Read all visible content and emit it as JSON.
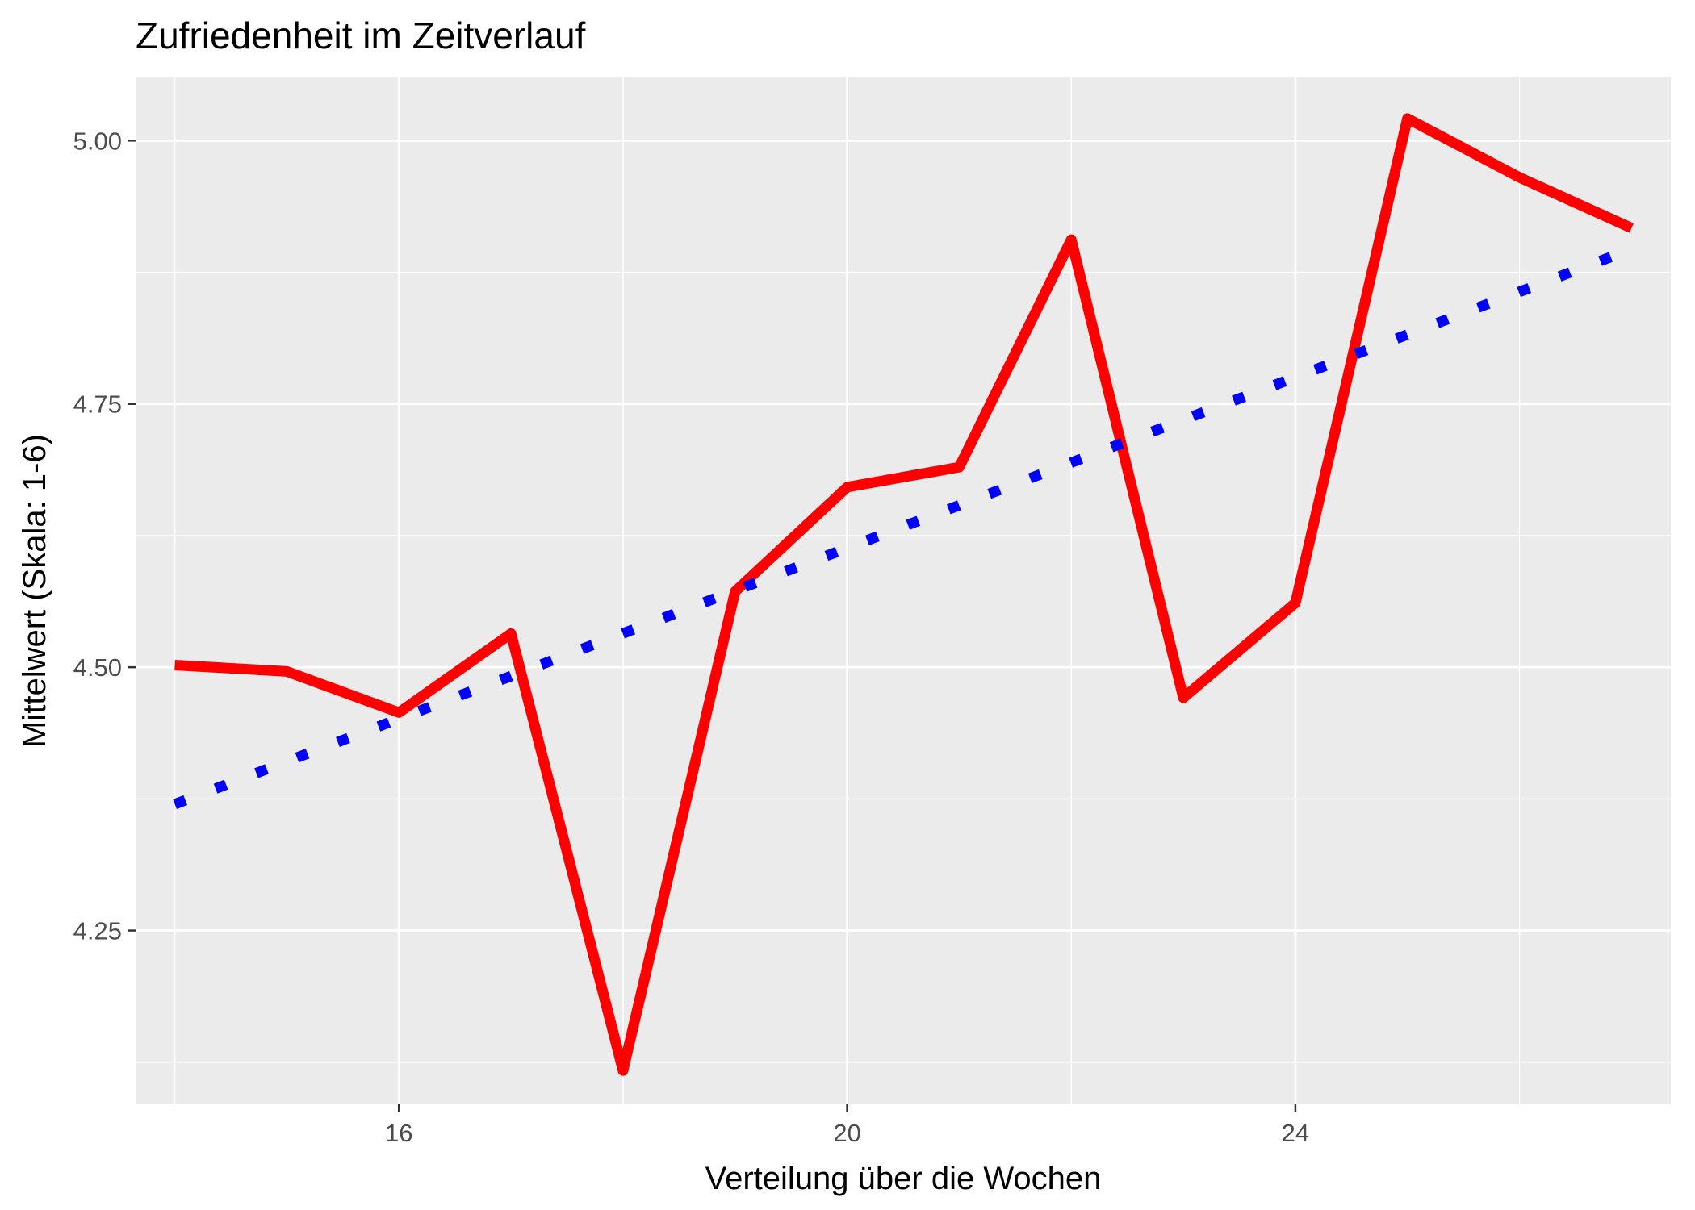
{
  "chart_data": {
    "type": "line",
    "title": "Zufriedenheit im Zeitverlauf",
    "xlabel": "Verteilung über die Wochen",
    "ylabel": "Mittelwert (Skala: 1-6)",
    "xlim": [
      13.65,
      27.35
    ],
    "ylim": [
      4.085,
      5.06
    ],
    "xticks": [
      16,
      20,
      24
    ],
    "xtick_labels": [
      "16",
      "20",
      "24"
    ],
    "yticks": [
      4.25,
      4.5,
      4.75,
      5.0
    ],
    "ytick_labels": [
      "4.25",
      "4.50",
      "4.75",
      "5.00"
    ],
    "grid": true,
    "legend": "none",
    "panel_background": "#ebebeb",
    "series": [
      {
        "style": "solid",
        "color": "#ff0000",
        "x": [
          14,
          15,
          16,
          17,
          18,
          19,
          20,
          21,
          22,
          23,
          24,
          25,
          26,
          27
        ],
        "y": [
          4.502,
          4.496,
          4.457,
          4.532,
          4.117,
          4.572,
          4.671,
          4.69,
          4.906,
          4.471,
          4.561,
          5.021,
          4.965,
          4.917
        ]
      },
      {
        "style": "dotted",
        "color": "#0000ff",
        "x": [
          14,
          27
        ],
        "y": [
          4.37,
          4.897
        ]
      }
    ]
  }
}
